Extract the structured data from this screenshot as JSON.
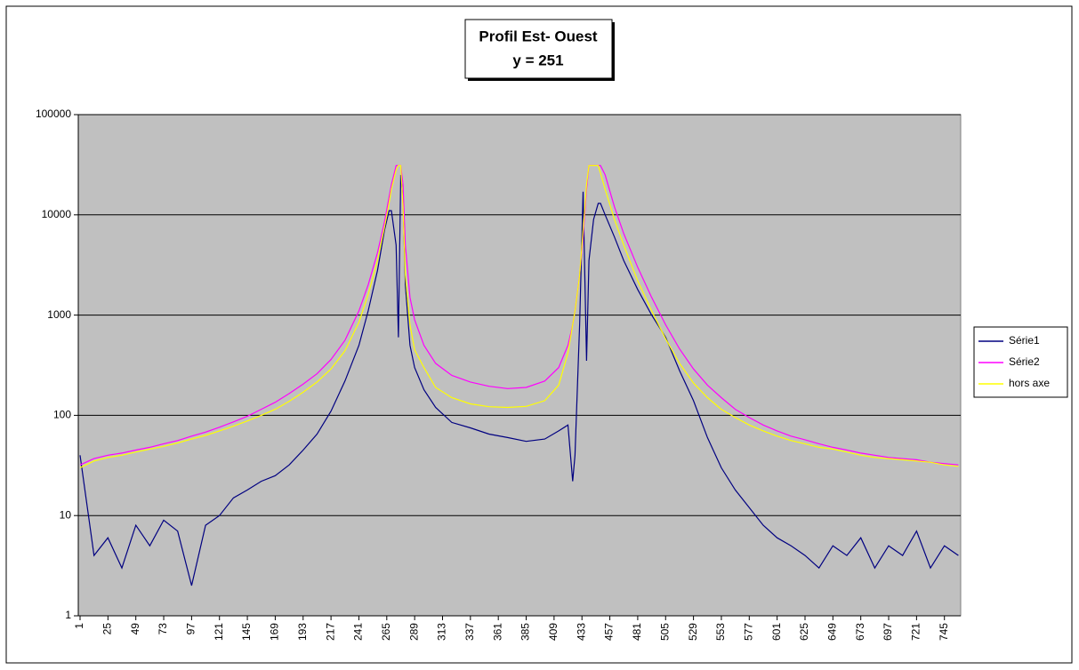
{
  "chart_data": {
    "type": "line",
    "title": "Profil Est- Ouest",
    "subtitle": "y = 251",
    "yscale": "log",
    "grid": true,
    "legend": "right",
    "xlim": [
      1,
      759
    ],
    "xticks": [
      1,
      25,
      49,
      73,
      97,
      121,
      145,
      169,
      193,
      217,
      241,
      265,
      289,
      313,
      337,
      361,
      385,
      409,
      433,
      457,
      481,
      505,
      529,
      553,
      577,
      601,
      625,
      649,
      673,
      697,
      721,
      745
    ],
    "ylim": [
      1,
      100000
    ],
    "yticks": [
      1,
      10,
      100,
      1000,
      10000,
      100000
    ],
    "x": [
      1,
      13,
      25,
      37,
      49,
      61,
      73,
      85,
      97,
      109,
      121,
      133,
      145,
      157,
      169,
      181,
      193,
      205,
      217,
      229,
      241,
      249,
      257,
      263,
      267,
      269,
      273,
      275,
      277,
      279,
      281,
      285,
      289,
      297,
      307,
      321,
      337,
      353,
      369,
      385,
      401,
      413,
      421,
      425,
      427,
      431,
      434,
      437,
      439,
      443,
      447,
      449,
      453,
      461,
      469,
      481,
      493,
      505,
      517,
      529,
      541,
      553,
      565,
      577,
      589,
      601,
      613,
      625,
      637,
      649,
      661,
      673,
      685,
      697,
      709,
      721,
      733,
      745,
      757
    ],
    "series": [
      {
        "name": "Série1",
        "color": "#000080",
        "values": [
          40,
          4,
          6,
          3,
          8,
          5,
          9,
          7,
          2,
          8,
          10,
          15,
          18,
          22,
          25,
          32,
          45,
          65,
          110,
          220,
          500,
          1100,
          2800,
          7000,
          11000,
          11000,
          5000,
          600,
          25000,
          15000,
          2000,
          500,
          300,
          180,
          120,
          85,
          75,
          65,
          60,
          55,
          58,
          70,
          80,
          22,
          40,
          800,
          17000,
          350,
          3500,
          9000,
          13000,
          13000,
          10000,
          6000,
          3500,
          1800,
          1000,
          600,
          280,
          140,
          60,
          30,
          18,
          12,
          8,
          6,
          5,
          4,
          3,
          5,
          4,
          6,
          3,
          5,
          4,
          7,
          3,
          5,
          4
        ]
      },
      {
        "name": "Série2",
        "color": "#ff00ff",
        "values": [
          32,
          37,
          40,
          42,
          45,
          48,
          52,
          56,
          62,
          68,
          76,
          86,
          98,
          115,
          135,
          165,
          205,
          260,
          360,
          560,
          1100,
          2000,
          4200,
          8500,
          15000,
          20000,
          31000,
          31000,
          31000,
          20000,
          5000,
          1500,
          900,
          500,
          330,
          250,
          215,
          195,
          185,
          190,
          220,
          300,
          500,
          800,
          1100,
          2500,
          6000,
          18000,
          31000,
          31000,
          31000,
          31000,
          25000,
          12000,
          6500,
          3000,
          1500,
          800,
          460,
          290,
          200,
          150,
          115,
          95,
          80,
          70,
          62,
          57,
          52,
          48,
          45,
          42,
          40,
          38,
          37,
          36,
          34,
          33,
          32
        ]
      },
      {
        "name": "hors axe",
        "color": "#ffff00",
        "values": [
          30,
          35,
          38,
          40,
          43,
          46,
          49,
          53,
          58,
          63,
          70,
          78,
          88,
          100,
          115,
          138,
          170,
          215,
          290,
          440,
          850,
          1600,
          3500,
          7500,
          13000,
          18000,
          28000,
          31000,
          31000,
          12000,
          2500,
          800,
          450,
          300,
          190,
          150,
          130,
          122,
          120,
          123,
          140,
          200,
          420,
          800,
          1100,
          2500,
          7000,
          20000,
          31000,
          31000,
          31000,
          26000,
          18000,
          9000,
          5000,
          2200,
          1100,
          580,
          330,
          210,
          150,
          115,
          95,
          80,
          70,
          62,
          56,
          52,
          48,
          46,
          43,
          40,
          38,
          37,
          36,
          35,
          34,
          32,
          31
        ]
      }
    ]
  }
}
